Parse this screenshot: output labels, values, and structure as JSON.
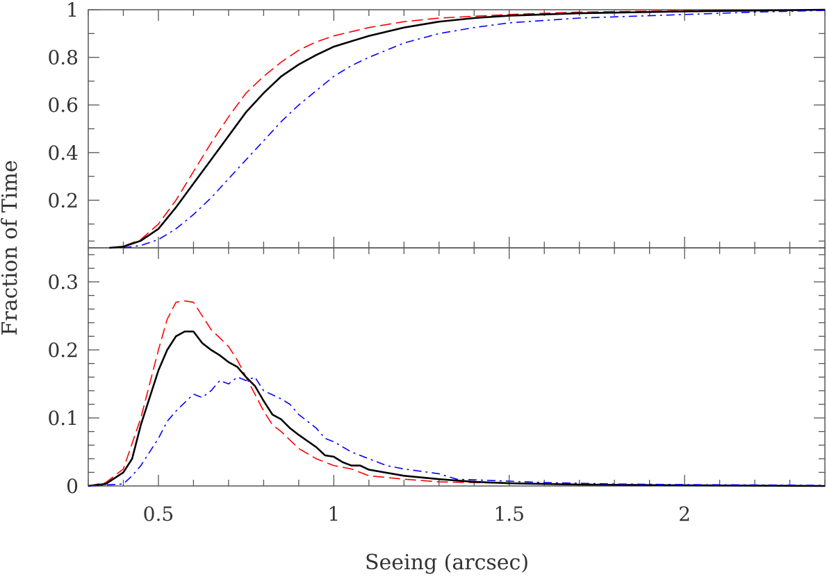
{
  "chart_data": [
    {
      "type": "line",
      "panel": "top",
      "xlim": [
        0.3,
        2.4
      ],
      "ylim": [
        0,
        1
      ],
      "yticks": [
        "0.2",
        "0.4",
        "0.6",
        "0.8",
        "1"
      ],
      "ytick_values": [
        0.2,
        0.4,
        0.6,
        0.8,
        1
      ],
      "grid": false,
      "series": [
        {
          "color": "#ff0000",
          "style": "dashed",
          "x": [
            0.36,
            0.4,
            0.45,
            0.5,
            0.55,
            0.6,
            0.65,
            0.7,
            0.75,
            0.8,
            0.85,
            0.9,
            0.95,
            1.0,
            1.1,
            1.2,
            1.3,
            1.5,
            1.7,
            2.0,
            2.4
          ],
          "y": [
            0,
            0.007,
            0.035,
            0.1,
            0.2,
            0.32,
            0.44,
            0.55,
            0.65,
            0.72,
            0.78,
            0.83,
            0.865,
            0.89,
            0.925,
            0.95,
            0.965,
            0.98,
            0.99,
            0.996,
            1
          ]
        },
        {
          "color": "#000000",
          "style": "solid",
          "x": [
            0.36,
            0.4,
            0.45,
            0.5,
            0.55,
            0.6,
            0.65,
            0.7,
            0.75,
            0.8,
            0.85,
            0.9,
            0.95,
            1.0,
            1.1,
            1.2,
            1.3,
            1.4,
            1.5,
            1.7,
            2.0,
            2.4
          ],
          "y": [
            0,
            0.005,
            0.03,
            0.08,
            0.17,
            0.27,
            0.37,
            0.47,
            0.57,
            0.65,
            0.72,
            0.77,
            0.81,
            0.845,
            0.89,
            0.925,
            0.95,
            0.965,
            0.975,
            0.985,
            0.993,
            1
          ]
        },
        {
          "color": "#0000ff",
          "style": "dashdot",
          "x": [
            0.4,
            0.45,
            0.5,
            0.55,
            0.6,
            0.65,
            0.7,
            0.75,
            0.8,
            0.85,
            0.9,
            0.95,
            1.0,
            1.05,
            1.1,
            1.2,
            1.3,
            1.4,
            1.5,
            1.7,
            2.0,
            2.2,
            2.4
          ],
          "y": [
            0,
            0.01,
            0.035,
            0.08,
            0.14,
            0.21,
            0.29,
            0.37,
            0.45,
            0.53,
            0.6,
            0.66,
            0.72,
            0.765,
            0.8,
            0.86,
            0.9,
            0.925,
            0.945,
            0.965,
            0.98,
            0.99,
            0.997
          ]
        }
      ]
    },
    {
      "type": "line",
      "panel": "bottom",
      "xlim": [
        0.3,
        2.4
      ],
      "ylim": [
        0,
        0.35
      ],
      "yticks": [
        "0",
        "0.1",
        "0.2",
        "0.3"
      ],
      "ytick_values": [
        0,
        0.1,
        0.2,
        0.3
      ],
      "xticks": [
        "0.5",
        "1",
        "1.5",
        "2"
      ],
      "xtick_values": [
        0.5,
        1,
        1.5,
        2
      ],
      "xlabel": "Seeing (arcsec)",
      "ylabel": "Fraction of Time",
      "grid": false,
      "series": [
        {
          "color": "#ff0000",
          "style": "dashed",
          "x": [
            0.3,
            0.35,
            0.4,
            0.45,
            0.5,
            0.525,
            0.55,
            0.575,
            0.6,
            0.625,
            0.65,
            0.7,
            0.725,
            0.75,
            0.775,
            0.8,
            0.825,
            0.85,
            0.9,
            0.95,
            1.0,
            1.05,
            1.1,
            1.2,
            1.3,
            1.5,
            2.0,
            2.4
          ],
          "y": [
            0,
            0.005,
            0.025,
            0.1,
            0.2,
            0.245,
            0.27,
            0.272,
            0.27,
            0.25,
            0.23,
            0.205,
            0.185,
            0.16,
            0.135,
            0.11,
            0.09,
            0.08,
            0.055,
            0.04,
            0.03,
            0.025,
            0.015,
            0.01,
            0.006,
            0.004,
            0.001,
            0
          ]
        },
        {
          "color": "#000000",
          "style": "solid",
          "x": [
            0.3,
            0.35,
            0.4,
            0.425,
            0.45,
            0.5,
            0.525,
            0.55,
            0.575,
            0.6,
            0.625,
            0.65,
            0.675,
            0.7,
            0.725,
            0.75,
            0.775,
            0.8,
            0.825,
            0.85,
            0.875,
            0.9,
            0.95,
            0.975,
            1.0,
            1.025,
            1.05,
            1.075,
            1.1,
            1.2,
            1.3,
            1.4,
            1.5,
            1.7,
            2.0,
            2.4
          ],
          "y": [
            0,
            0.003,
            0.02,
            0.04,
            0.09,
            0.17,
            0.2,
            0.22,
            0.227,
            0.227,
            0.21,
            0.2,
            0.192,
            0.182,
            0.175,
            0.16,
            0.147,
            0.125,
            0.105,
            0.098,
            0.085,
            0.075,
            0.057,
            0.045,
            0.043,
            0.035,
            0.03,
            0.03,
            0.024,
            0.015,
            0.01,
            0.006,
            0.004,
            0.002,
            0.001,
            0
          ]
        },
        {
          "color": "#0000ff",
          "style": "dashdot",
          "x": [
            0.3,
            0.4,
            0.425,
            0.45,
            0.5,
            0.525,
            0.55,
            0.6,
            0.625,
            0.65,
            0.675,
            0.7,
            0.725,
            0.75,
            0.775,
            0.8,
            0.85,
            0.875,
            0.9,
            0.95,
            0.975,
            1.0,
            1.05,
            1.1,
            1.15,
            1.2,
            1.3,
            1.35,
            1.5,
            1.6,
            1.8,
            2.0,
            2.4
          ],
          "y": [
            0,
            0.003,
            0.015,
            0.03,
            0.07,
            0.095,
            0.11,
            0.135,
            0.13,
            0.14,
            0.155,
            0.15,
            0.16,
            0.155,
            0.16,
            0.14,
            0.128,
            0.12,
            0.105,
            0.085,
            0.07,
            0.065,
            0.05,
            0.04,
            0.03,
            0.025,
            0.018,
            0.01,
            0.007,
            0.005,
            0.003,
            0.002,
            0.001
          ]
        }
      ]
    }
  ]
}
